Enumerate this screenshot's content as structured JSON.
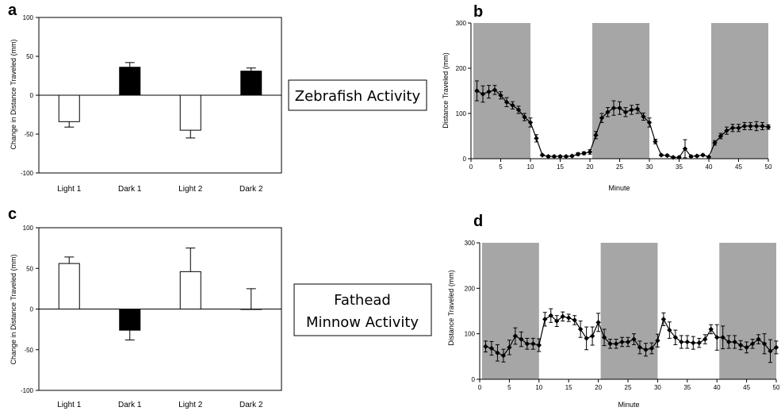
{
  "chart_data": [
    {
      "id": "a",
      "type": "bar",
      "panel_label": "a",
      "title": "",
      "ylabel": "Change in Distance Traveled (mm)",
      "xlabel": "",
      "ylim": [
        -100,
        100
      ],
      "yticks": [
        -100,
        -50,
        0,
        50,
        100
      ],
      "categories": [
        "Light 1",
        "Dark 1",
        "Light 2",
        "Dark 2"
      ],
      "values": [
        -34,
        36,
        -45,
        31
      ],
      "errors": [
        7,
        6,
        10,
        4
      ],
      "bar_colors": [
        "#ffffff",
        "#000000",
        "#ffffff",
        "#000000"
      ],
      "grid": false
    },
    {
      "id": "b",
      "type": "line",
      "panel_label": "b",
      "title": "",
      "xlabel": "Minute",
      "ylabel": "Distance Traveled (mm)",
      "xlim": [
        0,
        50
      ],
      "ylim": [
        0,
        300
      ],
      "xticks": [
        0,
        5,
        10,
        15,
        20,
        25,
        30,
        35,
        40,
        45,
        50
      ],
      "yticks": [
        0,
        100,
        200,
        300
      ],
      "dark_periods": [
        [
          0,
          10
        ],
        [
          20,
          30
        ],
        [
          40,
          50
        ]
      ],
      "x": [
        1,
        2,
        3,
        4,
        5,
        6,
        7,
        8,
        9,
        10,
        11,
        12,
        13,
        14,
        15,
        16,
        17,
        18,
        19,
        20,
        21,
        22,
        23,
        24,
        25,
        26,
        27,
        28,
        29,
        30,
        31,
        32,
        33,
        34,
        35,
        36,
        37,
        38,
        39,
        40,
        41,
        42,
        43,
        44,
        45,
        46,
        47,
        48,
        49,
        50
      ],
      "y": [
        150,
        143,
        148,
        152,
        140,
        125,
        118,
        108,
        92,
        80,
        45,
        8,
        5,
        5,
        5,
        5,
        6,
        10,
        12,
        15,
        52,
        90,
        103,
        112,
        112,
        103,
        108,
        110,
        93,
        80,
        38,
        8,
        7,
        3,
        3,
        22,
        5,
        6,
        8,
        4,
        35,
        50,
        62,
        68,
        68,
        72,
        72,
        72,
        72,
        70
      ],
      "yerr": [
        22,
        18,
        14,
        10,
        8,
        10,
        8,
        8,
        8,
        10,
        8,
        2,
        2,
        2,
        2,
        2,
        2,
        3,
        3,
        5,
        8,
        10,
        10,
        16,
        14,
        10,
        10,
        10,
        8,
        10,
        5,
        2,
        2,
        2,
        2,
        20,
        2,
        2,
        2,
        2,
        5,
        6,
        8,
        8,
        8,
        8,
        8,
        10,
        8,
        5
      ]
    },
    {
      "id": "c",
      "type": "bar",
      "panel_label": "c",
      "title": "",
      "ylabel": "Change in Distance Traveled (mm)",
      "xlabel": "",
      "ylim": [
        -100,
        100
      ],
      "yticks": [
        -100,
        -50,
        0,
        50,
        100
      ],
      "categories": [
        "Light 1",
        "Dark 1",
        "Light 2",
        "Dark 2"
      ],
      "values": [
        56,
        -26,
        46,
        0
      ],
      "errors": [
        8,
        12,
        29,
        25
      ],
      "bar_colors": [
        "#ffffff",
        "#000000",
        "#ffffff",
        "#000000"
      ],
      "grid": false
    },
    {
      "id": "d",
      "type": "line",
      "panel_label": "d",
      "title": "",
      "xlabel": "Minute",
      "ylabel": "Distance Traveled (mm)",
      "xlim": [
        0,
        50
      ],
      "ylim": [
        0,
        300
      ],
      "xticks": [
        0,
        5,
        10,
        15,
        20,
        25,
        30,
        35,
        40,
        45,
        50
      ],
      "yticks": [
        0,
        100,
        200,
        300
      ],
      "dark_periods": [
        [
          0,
          10
        ],
        [
          20,
          30
        ],
        [
          40,
          50
        ]
      ],
      "x": [
        1,
        2,
        3,
        4,
        5,
        6,
        7,
        8,
        9,
        10,
        11,
        12,
        13,
        14,
        15,
        16,
        17,
        18,
        19,
        20,
        21,
        22,
        23,
        24,
        25,
        26,
        27,
        28,
        29,
        30,
        31,
        32,
        33,
        34,
        35,
        36,
        37,
        38,
        39,
        40,
        41,
        42,
        43,
        44,
        45,
        46,
        47,
        48,
        49,
        50
      ],
      "y": [
        72,
        68,
        58,
        52,
        70,
        95,
        88,
        78,
        78,
        75,
        132,
        140,
        128,
        138,
        135,
        130,
        110,
        90,
        95,
        125,
        92,
        78,
        78,
        82,
        82,
        88,
        70,
        65,
        68,
        85,
        132,
        108,
        92,
        82,
        82,
        80,
        80,
        88,
        110,
        92,
        92,
        82,
        82,
        75,
        70,
        78,
        88,
        78,
        62,
        70
      ],
      "yerr": [
        12,
        15,
        18,
        14,
        16,
        18,
        16,
        12,
        12,
        14,
        15,
        15,
        12,
        10,
        8,
        10,
        18,
        25,
        20,
        20,
        18,
        10,
        10,
        10,
        10,
        12,
        14,
        14,
        12,
        14,
        14,
        18,
        16,
        14,
        14,
        14,
        10,
        10,
        10,
        28,
        25,
        14,
        14,
        10,
        12,
        10,
        10,
        22,
        25,
        14
      ]
    }
  ],
  "text_boxes": {
    "zebrafish": "Zebrafish Activity",
    "fathead_line1": "Fathead",
    "fathead_line2": "Minnow Activity"
  }
}
